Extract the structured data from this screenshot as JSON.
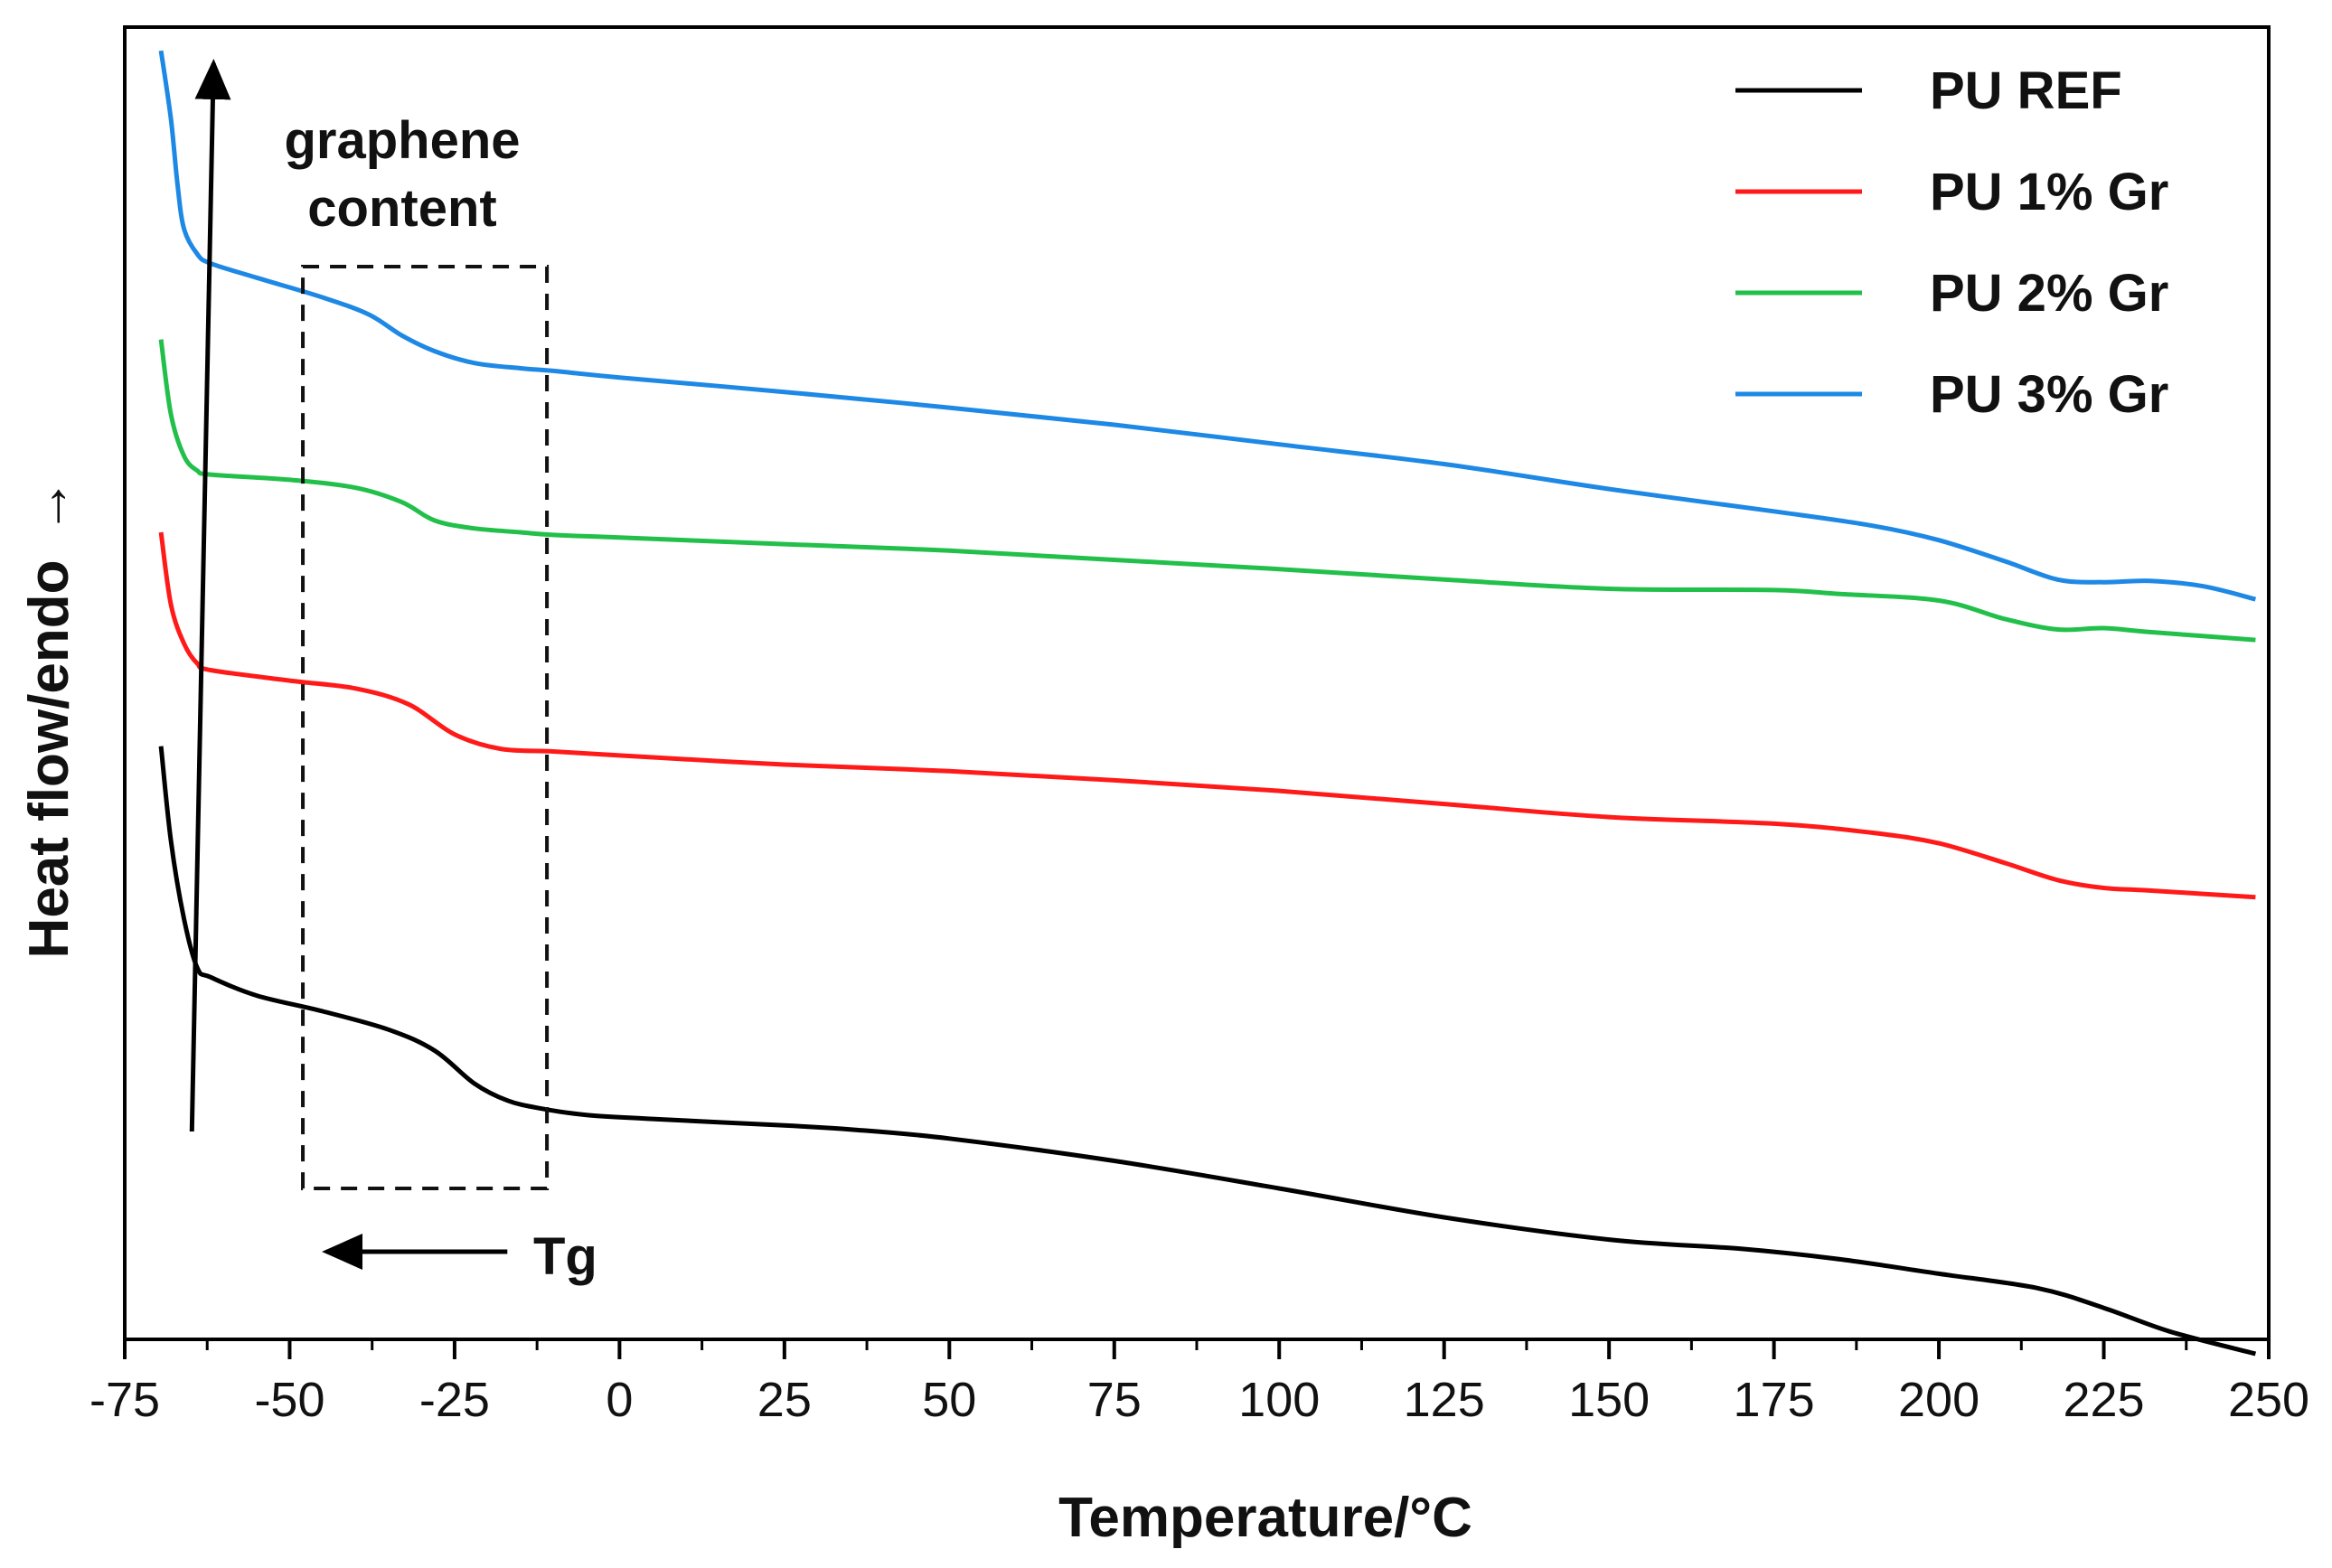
{
  "chart_data": {
    "type": "line",
    "title": "",
    "xlabel": "Temperature/°C",
    "ylabel": "Heat flow/endo",
    "ylabel_arrow": "→",
    "xlim": [
      -75,
      250
    ],
    "ylim": [
      0,
      100
    ],
    "y_ticks_shown": false,
    "grid": false,
    "x_ticks": [
      -75,
      -50,
      -25,
      0,
      25,
      50,
      75,
      100,
      125,
      150,
      175,
      200,
      225,
      250
    ],
    "legend_position": "top-right",
    "series": [
      {
        "name": "PU REF",
        "color": "#000000",
        "x": [
          -69.5,
          -68,
          -66,
          -64,
          -62,
          -55,
          -45,
          -35,
          -28,
          -22,
          -17,
          -12,
          -5,
          5,
          25,
          35,
          50,
          75,
          100,
          125,
          150,
          170,
          185,
          200,
          215,
          225,
          235,
          248
        ],
        "y": [
          45.2,
          38,
          32,
          28.3,
          27.6,
          26.2,
          25,
          23.6,
          22,
          19.5,
          18.2,
          17.6,
          17.1,
          16.8,
          16.3,
          16,
          15.3,
          13.6,
          11.5,
          9.3,
          7.6,
          6.9,
          6.1,
          5,
          3.9,
          2.4,
          0.6,
          -1.1
        ]
      },
      {
        "name": "PU 1% Gr",
        "color": "#ff1a1a",
        "x": [
          -69.5,
          -68,
          -66,
          -64,
          -62,
          -50,
          -40,
          -32,
          -25,
          -18,
          -10,
          0,
          25,
          50,
          75,
          100,
          125,
          150,
          175,
          190,
          200,
          210,
          218,
          225,
          232,
          248
        ],
        "y": [
          61.5,
          56,
          53,
          51.5,
          51,
          50.2,
          49.6,
          48.4,
          46.1,
          45,
          44.8,
          44.5,
          43.8,
          43.3,
          42.6,
          41.8,
          40.8,
          39.8,
          39.3,
          38.6,
          37.8,
          36.3,
          35,
          34.4,
          34.2,
          33.7
        ]
      },
      {
        "name": "PU 2% Gr",
        "color": "#22c04a",
        "x": [
          -69.5,
          -68,
          -66,
          -64,
          -62,
          -50,
          -40,
          -33,
          -28,
          -22,
          -15,
          -10,
          0,
          25,
          50,
          75,
          100,
          125,
          150,
          175,
          185,
          200,
          210,
          218,
          225,
          232,
          248
        ],
        "y": [
          76.2,
          70.5,
          67.3,
          66.2,
          65.9,
          65.5,
          64.9,
          63.8,
          62.4,
          61.8,
          61.5,
          61.3,
          61.1,
          60.6,
          60.1,
          59.4,
          58.7,
          57.9,
          57.2,
          57.1,
          56.8,
          56.3,
          54.9,
          54.1,
          54.2,
          53.9,
          53.3
        ]
      },
      {
        "name": "PU 3% Gr",
        "color": "#1e88e5",
        "x": [
          -69.5,
          -68,
          -67,
          -66,
          -64,
          -62,
          -55,
          -45,
          -38,
          -33,
          -28,
          -22,
          -15,
          -10,
          0,
          25,
          50,
          75,
          100,
          125,
          150,
          175,
          190,
          200,
          210,
          218,
          225,
          232,
          240,
          248
        ],
        "y": [
          98.2,
          93,
          88,
          84.6,
          82.7,
          82,
          80.9,
          79.4,
          78.1,
          76.5,
          75.3,
          74.4,
          74,
          73.8,
          73.3,
          72.2,
          71,
          69.7,
          68.2,
          66.7,
          64.8,
          63.1,
          62,
          60.9,
          59.3,
          57.9,
          57.7,
          57.8,
          57.4,
          56.4
        ]
      }
    ],
    "annotations": {
      "box_label_line1": "graphene",
      "box_label_line2": "content",
      "tg_label": "Tg",
      "box_x_range": [
        -48,
        -11
      ],
      "up_arrow_x": -64,
      "tg_arrow_from_x": -17,
      "tg_arrow_to_x": -48
    }
  }
}
